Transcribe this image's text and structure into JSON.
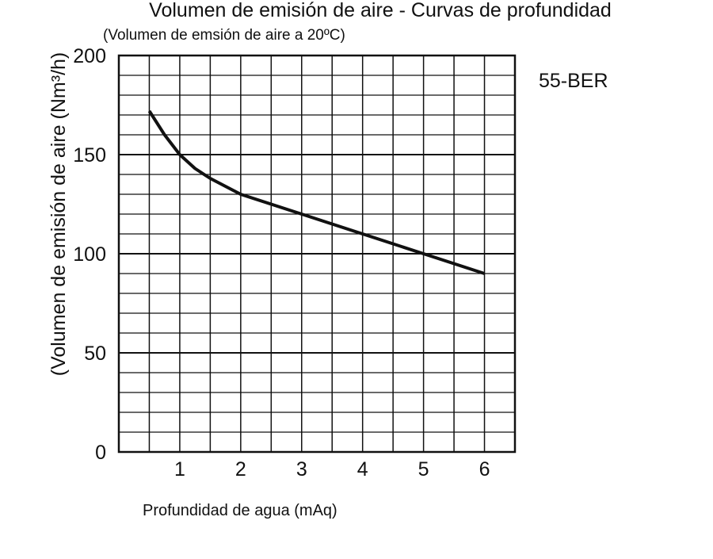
{
  "chart_data": {
    "type": "line",
    "title": "Volumen de emisión de aire - Curvas de profundidad",
    "subtitle": "(Volumen de emsión de aire a 20ºC)",
    "xlabel": "Profundidad de agua (mAq)",
    "ylabel": "(Volumen de emisión de aire (Nm³/h)",
    "model_label": "55-BER",
    "xlim": [
      0,
      6.5
    ],
    "ylim": [
      0,
      200
    ],
    "x_ticks": [
      1,
      2,
      3,
      4,
      5,
      6
    ],
    "y_ticks": [
      0,
      50,
      100,
      150,
      200
    ],
    "grid": true,
    "series": [
      {
        "name": "55-BER",
        "x": [
          0.5,
          0.75,
          1.0,
          1.25,
          1.5,
          2.0,
          2.5,
          3.0,
          3.5,
          4.0,
          4.5,
          5.0,
          5.5,
          6.0
        ],
        "y": [
          172,
          160,
          150,
          143,
          138,
          130,
          125,
          120,
          115,
          110,
          105,
          100,
          95,
          90
        ]
      }
    ],
    "colors": {
      "line": "#111111",
      "grid": "#111111"
    }
  }
}
